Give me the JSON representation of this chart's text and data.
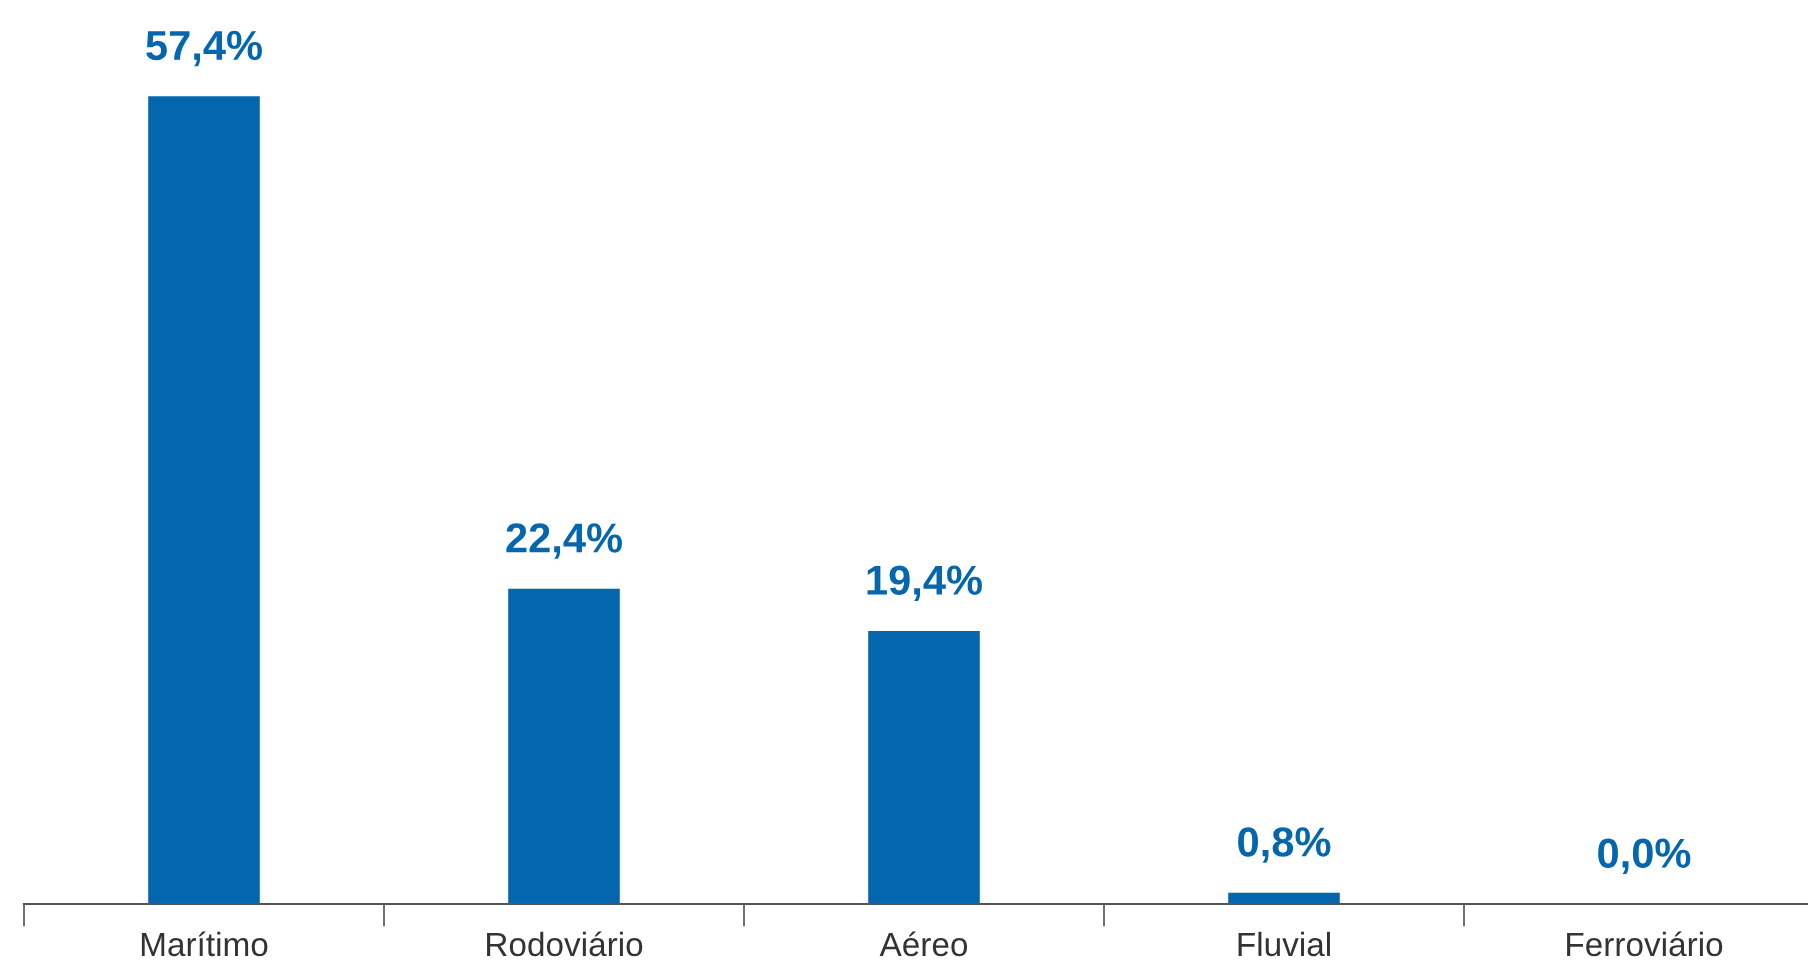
{
  "chart_data": {
    "type": "bar",
    "categories": [
      "Marítimo",
      "Rodoviário",
      "Aéreo",
      "Fluvial",
      "Ferroviário"
    ],
    "values": [
      57.4,
      22.4,
      19.4,
      0.8,
      0.0
    ],
    "value_labels": [
      "57,4%",
      "22,4%",
      "19,4%",
      "0,8%",
      "0,0%"
    ],
    "color": "#0467ad",
    "grid": false,
    "legend": false
  }
}
